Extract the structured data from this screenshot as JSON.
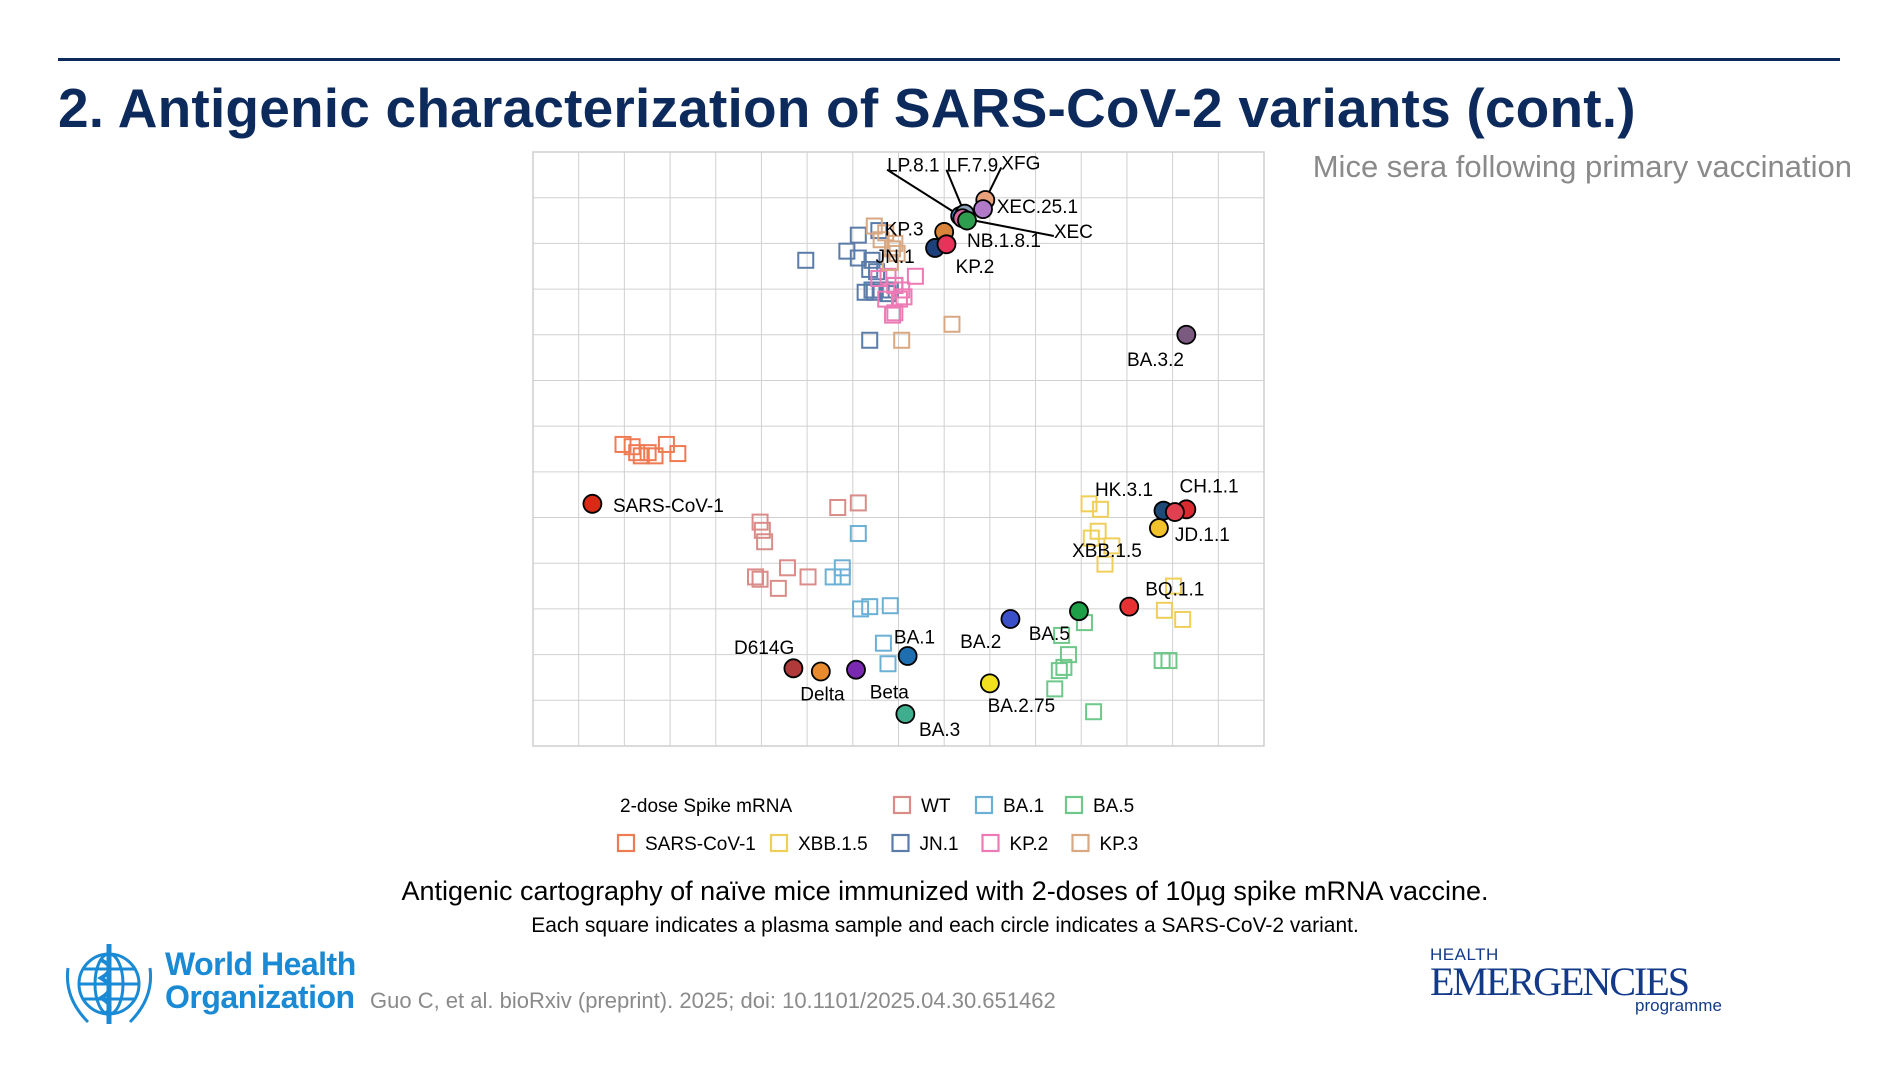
{
  "slide": {
    "title": "2. Antigenic characterization of SARS-CoV-2 variants (cont.)",
    "subtitle": "Mice sera following primary vaccination",
    "caption_main": "Antigenic cartography of naïve mice immunized with 2-doses of 10µg spike mRNA vaccine.",
    "caption_sub": "Each square indicates a plasma sample and each circle indicates a SARS-CoV-2 variant.",
    "citation": "Guo C, et al. bioRxiv (preprint). 2025; doi: 10.1101/2025.04.30.651462",
    "who_line1": "World Health",
    "who_line2": "Organization",
    "he_line1": "HEALTH",
    "he_line2": "EMERGENCIES",
    "he_line3": "programme"
  },
  "chart_data": {
    "type": "scatter",
    "title": "",
    "xlabel": "",
    "ylabel": "",
    "xlim": [
      0,
      16
    ],
    "ylim": [
      0,
      13
    ],
    "grid": true,
    "legend": {
      "placement": "bottom",
      "title": "2-dose Spike mRNA",
      "rows": [
        [
          {
            "name": "WT",
            "color": "#d98c88"
          },
          {
            "name": "BA.1",
            "color": "#6cb0d6"
          },
          {
            "name": "BA.5",
            "color": "#6dc88a"
          }
        ],
        [
          {
            "name": "SARS-CoV-1",
            "color": "#f07a52"
          },
          {
            "name": "XBB.1.5",
            "color": "#f0ce5a"
          },
          {
            "name": "JN.1",
            "color": "#5b7ba8"
          },
          {
            "name": "KP.2",
            "color": "#ec7ab5"
          },
          {
            "name": "KP.3",
            "color": "#d8a882"
          }
        ]
      ]
    },
    "variants": [
      {
        "name": "LP.8.1",
        "x": 9.35,
        "y": 11.6,
        "color": "#3b7fb8",
        "label_dx": -1.6,
        "label_dy": 1.1,
        "leader": true
      },
      {
        "name": "LF.7.9",
        "x": 9.45,
        "y": 11.65,
        "color": "#8f9fb8",
        "label_dx": -0.4,
        "label_dy": 1.05,
        "leader": true
      },
      {
        "name": "XFG",
        "x": 9.9,
        "y": 11.95,
        "color": "#e8a07a",
        "label_dx": 0.35,
        "label_dy": 0.8,
        "leader": true
      },
      {
        "name": "XEC.25.1",
        "x": 9.85,
        "y": 11.75,
        "color": "#b07ac8",
        "label_dx": 0.3,
        "label_dy": 0.05,
        "leader": false
      },
      {
        "name": "XEC",
        "x": 9.4,
        "y": 11.55,
        "color": "#d86aa0",
        "label_dx": 2.0,
        "label_dy": -0.3,
        "leader": true
      },
      {
        "name": "KP.3",
        "x": 9.0,
        "y": 11.25,
        "color": "#d8843a",
        "label_dx": -1.3,
        "label_dy": 0.05,
        "leader": false
      },
      {
        "name": "NB.1.8.1",
        "x": 9.5,
        "y": 11.5,
        "color": "#2e9e4e",
        "label_dx": 0.0,
        "label_dy": -0.45,
        "leader": false
      },
      {
        "name": "JN.1",
        "x": 8.8,
        "y": 10.9,
        "color": "#1d3f7a",
        "label_dx": -1.3,
        "label_dy": -0.2,
        "leader": false
      },
      {
        "name": "KP.2",
        "x": 9.05,
        "y": 10.98,
        "color": "#e8325a",
        "label_dx": 0.2,
        "label_dy": -0.5,
        "leader": false
      },
      {
        "name": "BA.3.2",
        "x": 14.3,
        "y": 9.0,
        "color": "#7a5a7f",
        "label_dx": -1.3,
        "label_dy": -0.55,
        "leader": false
      },
      {
        "name": "SARS-CoV-1",
        "x": 1.3,
        "y": 5.3,
        "color": "#d82a14",
        "label_dx": 0.45,
        "label_dy": -0.05,
        "leader": false
      },
      {
        "name": "HK.3.1",
        "x": 13.8,
        "y": 5.15,
        "color": "#1e4a78",
        "label_dx": -1.5,
        "label_dy": 0.45,
        "leader": false
      },
      {
        "name": "CH.1.1",
        "x": 14.3,
        "y": 5.18,
        "color": "#d82a30",
        "label_dx": -0.15,
        "label_dy": 0.5,
        "leader": false
      },
      {
        "name": "JD.1.1",
        "x": 14.05,
        "y": 5.12,
        "color": "#e04050",
        "label_dx": 0.0,
        "label_dy": -0.5,
        "leader": false
      },
      {
        "name": "XBB.1.5",
        "x": 13.7,
        "y": 4.77,
        "color": "#f2c22a",
        "label_dx": -1.9,
        "label_dy": -0.5,
        "leader": false
      },
      {
        "name": "BQ.1.1",
        "x": 13.05,
        "y": 3.05,
        "color": "#e63232",
        "label_dx": 0.35,
        "label_dy": 0.38,
        "leader": false
      },
      {
        "name": "BA.5",
        "x": 11.95,
        "y": 2.95,
        "color": "#1ea048",
        "label_dx": -1.1,
        "label_dy": -0.5,
        "leader": false
      },
      {
        "name": "BA.2",
        "x": 10.45,
        "y": 2.78,
        "color": "#3b4fc8",
        "label_dx": -1.1,
        "label_dy": -0.5,
        "leader": false
      },
      {
        "name": "BA.1",
        "x": 8.2,
        "y": 1.97,
        "color": "#1f6fb0",
        "label_dx": -0.3,
        "label_dy": 0.4,
        "leader": false
      },
      {
        "name": "D614G",
        "x": 5.7,
        "y": 1.7,
        "color": "#b03a3a",
        "label_dx": -1.3,
        "label_dy": 0.45,
        "leader": false
      },
      {
        "name": "Delta",
        "x": 6.3,
        "y": 1.63,
        "color": "#e88a2e",
        "label_dx": -0.45,
        "label_dy": -0.5,
        "leader": false
      },
      {
        "name": "Beta",
        "x": 7.07,
        "y": 1.67,
        "color": "#7a2ab0",
        "label_dx": 0.3,
        "label_dy": -0.5,
        "leader": false
      },
      {
        "name": "BA.2.75",
        "x": 10.0,
        "y": 1.37,
        "color": "#f0e020",
        "label_dx": -0.05,
        "label_dy": -0.5,
        "leader": false
      },
      {
        "name": "BA.3",
        "x": 8.15,
        "y": 0.7,
        "color": "#3fae8f",
        "label_dx": 0.3,
        "label_dy": -0.35,
        "leader": false
      }
    ],
    "sera": [
      {
        "group": "WT",
        "points": [
          [
            4.97,
            4.9
          ],
          [
            5.02,
            4.72
          ],
          [
            5.07,
            4.47
          ],
          [
            4.87,
            3.7
          ],
          [
            4.97,
            3.65
          ],
          [
            5.57,
            3.9
          ],
          [
            5.37,
            3.45
          ],
          [
            6.02,
            3.7
          ],
          [
            6.67,
            5.22
          ],
          [
            7.12,
            5.32
          ]
        ]
      },
      {
        "group": "BA.1",
        "points": [
          [
            7.12,
            4.65
          ],
          [
            6.77,
            3.9
          ],
          [
            6.57,
            3.7
          ],
          [
            6.77,
            3.7
          ],
          [
            7.17,
            3.0
          ],
          [
            7.37,
            3.05
          ],
          [
            7.82,
            3.07
          ],
          [
            7.77,
            1.8
          ],
          [
            7.67,
            2.25
          ]
        ]
      },
      {
        "group": "BA.5",
        "points": [
          [
            12.07,
            2.7
          ],
          [
            11.57,
            2.42
          ],
          [
            11.72,
            2.0
          ],
          [
            11.52,
            1.65
          ],
          [
            11.62,
            1.72
          ],
          [
            11.42,
            1.25
          ],
          [
            12.27,
            0.75
          ],
          [
            13.77,
            1.87
          ],
          [
            13.92,
            1.87
          ]
        ]
      },
      {
        "group": "SARS-CoV-1",
        "points": [
          [
            1.97,
            6.6
          ],
          [
            2.17,
            6.55
          ],
          [
            2.27,
            6.42
          ],
          [
            2.52,
            6.42
          ],
          [
            2.67,
            6.35
          ],
          [
            2.92,
            6.6
          ],
          [
            3.17,
            6.4
          ],
          [
            2.37,
            6.35
          ]
        ]
      },
      {
        "group": "XBB.1.5",
        "points": [
          [
            12.17,
            5.3
          ],
          [
            12.42,
            5.18
          ],
          [
            12.22,
            4.55
          ],
          [
            12.67,
            4.38
          ],
          [
            12.52,
            3.98
          ],
          [
            12.37,
            4.7
          ],
          [
            13.82,
            2.97
          ],
          [
            14.22,
            2.77
          ],
          [
            14.02,
            3.5
          ]
        ]
      },
      {
        "group": "JN.1",
        "points": [
          [
            5.97,
            10.63
          ],
          [
            6.87,
            10.83
          ],
          [
            7.12,
            10.68
          ],
          [
            7.12,
            11.18
          ],
          [
            7.37,
            10.43
          ],
          [
            7.42,
            10.63
          ],
          [
            7.92,
            10.08
          ],
          [
            7.52,
            10.38
          ],
          [
            7.62,
            9.98
          ],
          [
            7.42,
            9.98
          ],
          [
            7.82,
            9.98
          ],
          [
            7.77,
            9.9
          ],
          [
            7.27,
            9.93
          ],
          [
            7.47,
            9.93
          ],
          [
            7.57,
            11.28
          ],
          [
            7.37,
            8.88
          ]
        ]
      },
      {
        "group": "KP.2",
        "points": [
          [
            7.57,
            10.23
          ],
          [
            7.77,
            10.28
          ],
          [
            7.92,
            10.08
          ],
          [
            8.37,
            10.28
          ],
          [
            8.02,
            9.78
          ],
          [
            8.12,
            9.83
          ],
          [
            7.92,
            9.48
          ],
          [
            7.87,
            9.43
          ],
          [
            7.72,
            9.78
          ],
          [
            8.07,
            9.98
          ]
        ]
      },
      {
        "group": "KP.3",
        "points": [
          [
            7.47,
            11.38
          ],
          [
            7.72,
            11.23
          ],
          [
            7.87,
            10.88
          ],
          [
            7.62,
            11.08
          ],
          [
            7.92,
            11.0
          ],
          [
            7.97,
            10.78
          ],
          [
            7.82,
            10.58
          ],
          [
            9.17,
            9.23
          ],
          [
            8.07,
            8.88
          ]
        ]
      }
    ]
  }
}
